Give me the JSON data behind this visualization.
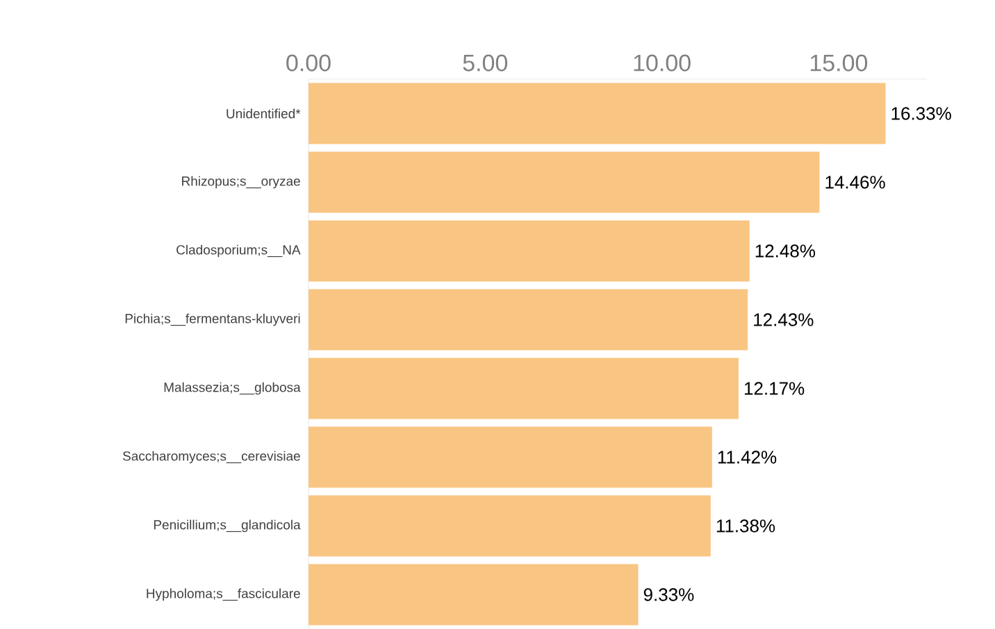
{
  "chart_data": {
    "type": "bar",
    "orientation": "horizontal",
    "categories": [
      "Unidentified*",
      "Rhizopus;s__oryzae",
      "Cladosporium;s__NA",
      "Pichia;s__fermentans-kluyveri",
      "Malassezia;s__globosa",
      "Saccharomyces;s__cerevisiae",
      "Penicillium;s__glandicola",
      "Hypholoma;s__fasciculare"
    ],
    "values": [
      16.33,
      14.46,
      12.48,
      12.43,
      12.17,
      11.42,
      11.38,
      9.33
    ],
    "value_labels": [
      "16.33%",
      "14.46%",
      "12.48%",
      "12.43%",
      "12.17%",
      "11.42%",
      "11.38%",
      "9.33%"
    ],
    "color": "#f9c582",
    "xlim": [
      0,
      17.5
    ],
    "xticks": [
      {
        "value": 0,
        "label": "0.00"
      },
      {
        "value": 5,
        "label": "5.00"
      },
      {
        "value": 10,
        "label": "10.00"
      },
      {
        "value": 15,
        "label": "15.00"
      }
    ],
    "grid": false
  }
}
